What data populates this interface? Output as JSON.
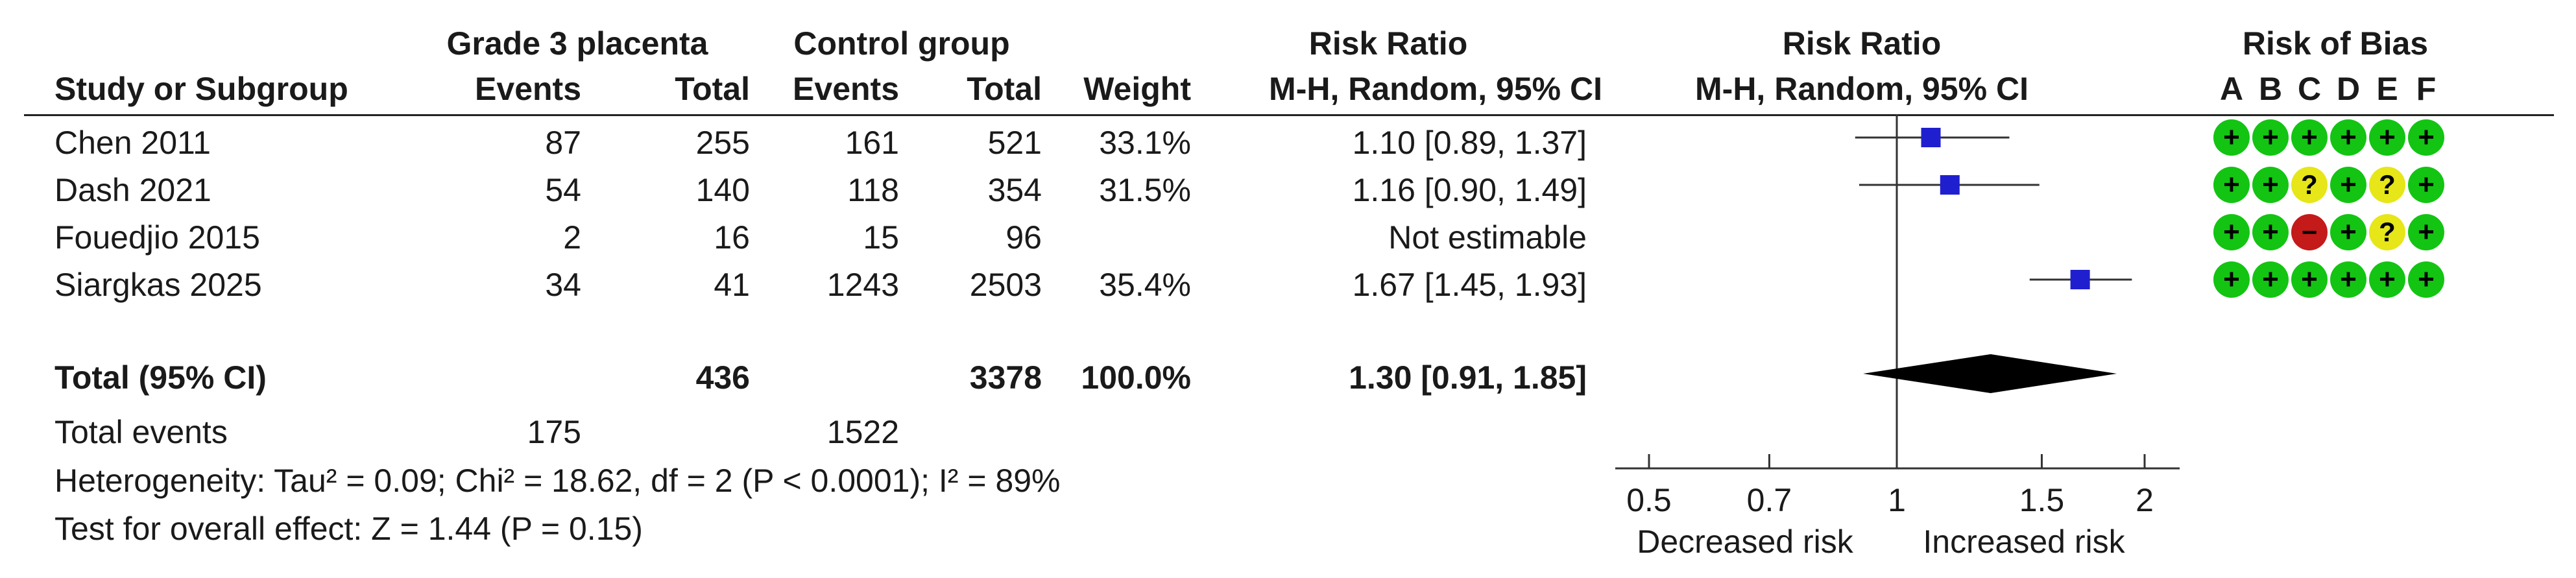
{
  "header": {
    "group1": "Grade 3 placenta",
    "group2": "Control group",
    "rr_col_title": "Risk Ratio",
    "plot_title": "Risk Ratio",
    "bias_title": "Risk of Bias",
    "study_col": "Study or Subgroup",
    "events": "Events",
    "total": "Total",
    "weight": "Weight",
    "method": "M-H, Random, 95% CI",
    "plot_method": "M-H, Random, 95% CI",
    "bias_domains": [
      "A",
      "B",
      "C",
      "D",
      "E",
      "F"
    ]
  },
  "studies": [
    {
      "name": "Chen 2011",
      "e1": "87",
      "n1": "255",
      "e2": "161",
      "n2": "521",
      "weight": "33.1%",
      "ci_text": "1.10 [0.89, 1.37]",
      "rr": 1.1,
      "lo": 0.89,
      "hi": 1.37,
      "weight_pct": 33.1,
      "bias": [
        "low",
        "low",
        "low",
        "low",
        "low",
        "low"
      ]
    },
    {
      "name": "Dash 2021",
      "e1": "54",
      "n1": "140",
      "e2": "118",
      "n2": "354",
      "weight": "31.5%",
      "ci_text": "1.16 [0.90, 1.49]",
      "rr": 1.16,
      "lo": 0.9,
      "hi": 1.49,
      "weight_pct": 31.5,
      "bias": [
        "low",
        "low",
        "unclear",
        "low",
        "unclear",
        "low"
      ]
    },
    {
      "name": "Fouedjio 2015",
      "e1": "2",
      "n1": "16",
      "e2": "15",
      "n2": "96",
      "weight": "",
      "ci_text": "Not estimable",
      "rr": null,
      "lo": null,
      "hi": null,
      "weight_pct": 0,
      "bias": [
        "low",
        "low",
        "high",
        "low",
        "unclear",
        "low"
      ]
    },
    {
      "name": "Siargkas 2025",
      "e1": "34",
      "n1": "41",
      "e2": "1243",
      "n2": "2503",
      "weight": "35.4%",
      "ci_text": "1.67 [1.45, 1.93]",
      "rr": 1.67,
      "lo": 1.45,
      "hi": 1.93,
      "weight_pct": 35.4,
      "bias": [
        "low",
        "low",
        "low",
        "low",
        "low",
        "low"
      ]
    }
  ],
  "total": {
    "label": "Total (95% CI)",
    "n1": "436",
    "n2": "3378",
    "weight": "100.0%",
    "ci_text": "1.30 [0.91, 1.85]",
    "rr": 1.3,
    "lo": 0.91,
    "hi": 1.85
  },
  "total_events": {
    "label": "Total events",
    "e1": "175",
    "e2": "1522"
  },
  "heterogeneity": "Heterogeneity: Tau² = 0.09; Chi² = 18.62, df = 2 (P < 0.0001); I² = 89%",
  "overall_effect": "Test for overall effect: Z = 1.44 (P = 0.15)",
  "chart_data": {
    "type": "forest",
    "scale": "log",
    "xlim": [
      0.5,
      2
    ],
    "ticks": [
      0.5,
      0.7,
      1,
      1.5,
      2
    ],
    "tick_labels": [
      "0.5",
      "0.7",
      "1",
      "1.5",
      "2"
    ],
    "null_value": 1,
    "favours_left": "Decreased risk",
    "favours_right": "Increased risk",
    "categories": [
      "Chen 2011",
      "Dash 2021",
      "Fouedjio 2015",
      "Siargkas 2025"
    ],
    "rr": [
      1.1,
      1.16,
      null,
      1.67
    ],
    "ci_low": [
      0.89,
      0.9,
      null,
      1.45
    ],
    "ci_high": [
      1.37,
      1.49,
      null,
      1.93
    ],
    "pooled": {
      "rr": 1.3,
      "lo": 0.91,
      "hi": 1.85
    }
  },
  "colors": {
    "marker": "#1f1fcf",
    "diamond": "#000000",
    "low": "#13c413",
    "unclear": "#e6e619",
    "high": "#c41a1a"
  },
  "bias_symbols": {
    "low": "+",
    "unclear": "?",
    "high": "−"
  }
}
